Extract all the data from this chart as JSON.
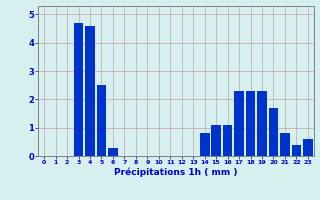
{
  "categories": [
    0,
    1,
    2,
    3,
    4,
    5,
    6,
    7,
    8,
    9,
    10,
    11,
    12,
    13,
    14,
    15,
    16,
    17,
    18,
    19,
    20,
    21,
    22,
    23
  ],
  "values": [
    0,
    0,
    0,
    4.7,
    4.6,
    2.5,
    0.3,
    0,
    0,
    0,
    0,
    0,
    0,
    0,
    0.8,
    1.1,
    1.1,
    2.3,
    2.3,
    2.3,
    1.7,
    0.8,
    0.4,
    0.6
  ],
  "bar_color": "#0033cc",
  "background_color": "#d6f0f0",
  "grid_color": "#c8a0a0",
  "xlabel": "Précipitations 1h ( mm )",
  "xlabel_color": "#0000cc",
  "tick_color": "#0000cc",
  "ylim": [
    0,
    5.3
  ],
  "yticks": [
    0,
    1,
    2,
    3,
    4,
    5
  ]
}
